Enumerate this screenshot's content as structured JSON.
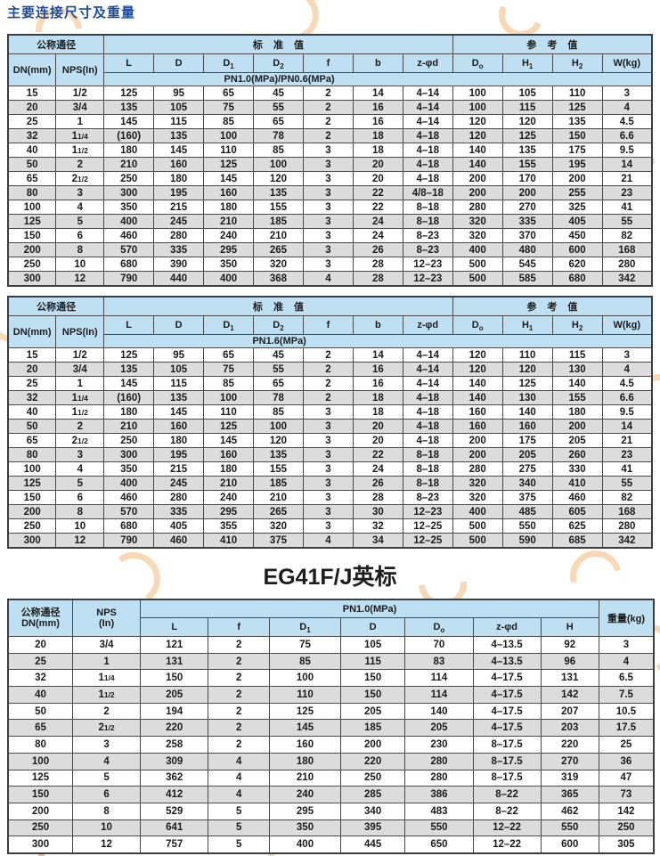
{
  "page": {
    "title": "主要连接尺寸及重量",
    "title_color": "#1B4C9F",
    "header_bg": "#BEE0F2",
    "alt_row_bg": "#DCDCDC",
    "watermark_color": "#F4B26C"
  },
  "table1": {
    "groups": [
      {
        "label": "公称通径",
        "span": 2
      },
      {
        "label": "标 准 值",
        "span": 7
      },
      {
        "label": "参 考 值",
        "span": 4
      }
    ],
    "columns": [
      "DN(mm)",
      "NPS(In)",
      "L",
      "D",
      "D_1",
      "D_2",
      "f",
      "b",
      "z-φd",
      "D_o",
      "H_1",
      "H_2",
      "W(kg)"
    ],
    "pn_label": "PN1.0(MPa)/PN0.6(MPa)",
    "rows": [
      [
        "15",
        "1/2",
        "125",
        "95",
        "65",
        "45",
        "2",
        "14",
        "4–14",
        "100",
        "105",
        "110",
        "3"
      ],
      [
        "20",
        "3/4",
        "135",
        "105",
        "75",
        "55",
        "2",
        "16",
        "4–14",
        "100",
        "115",
        "125",
        "4"
      ],
      [
        "25",
        "1",
        "145",
        "115",
        "85",
        "65",
        "2",
        "16",
        "4–14",
        "120",
        "120",
        "135",
        "4.5"
      ],
      [
        "32",
        "1 1/4",
        "(160)",
        "135",
        "100",
        "78",
        "2",
        "18",
        "4–18",
        "120",
        "125",
        "150",
        "6.6"
      ],
      [
        "40",
        "1 1/2",
        "180",
        "145",
        "110",
        "85",
        "3",
        "18",
        "4–18",
        "140",
        "135",
        "175",
        "9.5"
      ],
      [
        "50",
        "2",
        "210",
        "160",
        "125",
        "100",
        "3",
        "20",
        "4–18",
        "140",
        "155",
        "195",
        "14"
      ],
      [
        "65",
        "2 1/2",
        "250",
        "180",
        "145",
        "120",
        "3",
        "20",
        "4–18",
        "200",
        "170",
        "200",
        "21"
      ],
      [
        "80",
        "3",
        "300",
        "195",
        "160",
        "135",
        "3",
        "22",
        "4/8–18",
        "200",
        "200",
        "255",
        "23"
      ],
      [
        "100",
        "4",
        "350",
        "215",
        "180",
        "155",
        "3",
        "22",
        "8–18",
        "280",
        "270",
        "325",
        "41"
      ],
      [
        "125",
        "5",
        "400",
        "245",
        "210",
        "185",
        "3",
        "24",
        "8–18",
        "320",
        "335",
        "405",
        "55"
      ],
      [
        "150",
        "6",
        "460",
        "280",
        "240",
        "210",
        "3",
        "24",
        "8–23",
        "320",
        "370",
        "450",
        "82"
      ],
      [
        "200",
        "8",
        "570",
        "335",
        "295",
        "265",
        "3",
        "26",
        "8–23",
        "400",
        "480",
        "600",
        "168"
      ],
      [
        "250",
        "10",
        "680",
        "390",
        "350",
        "320",
        "3",
        "28",
        "12–23",
        "500",
        "545",
        "620",
        "280"
      ],
      [
        "300",
        "12",
        "790",
        "440",
        "400",
        "368",
        "4",
        "28",
        "12–23",
        "500",
        "585",
        "680",
        "342"
      ]
    ]
  },
  "table2": {
    "groups": [
      {
        "label": "公称通径",
        "span": 2
      },
      {
        "label": "标 准 值",
        "span": 7
      },
      {
        "label": "参 考 值",
        "span": 4
      }
    ],
    "columns": [
      "DN(mm)",
      "NPS(In)",
      "L",
      "D",
      "D_1",
      "D_2",
      "f",
      "b",
      "z-φd",
      "D_o",
      "H_1",
      "H_2",
      "W(kg)"
    ],
    "pn_label": "PN1.6(MPa)",
    "rows": [
      [
        "15",
        "1/2",
        "125",
        "95",
        "65",
        "45",
        "2",
        "14",
        "4–14",
        "120",
        "110",
        "115",
        "3"
      ],
      [
        "20",
        "3/4",
        "135",
        "105",
        "75",
        "55",
        "2",
        "16",
        "4–14",
        "120",
        "120",
        "130",
        "4"
      ],
      [
        "25",
        "1",
        "145",
        "115",
        "85",
        "65",
        "2",
        "16",
        "4–14",
        "140",
        "125",
        "140",
        "4.5"
      ],
      [
        "32",
        "1 1/4",
        "(160)",
        "135",
        "100",
        "78",
        "2",
        "18",
        "4–18",
        "140",
        "130",
        "155",
        "6.6"
      ],
      [
        "40",
        "1 1/2",
        "180",
        "145",
        "110",
        "85",
        "3",
        "18",
        "4–18",
        "160",
        "140",
        "180",
        "9.5"
      ],
      [
        "50",
        "2",
        "210",
        "160",
        "125",
        "100",
        "3",
        "20",
        "4–18",
        "160",
        "160",
        "200",
        "14"
      ],
      [
        "65",
        "2 1/2",
        "250",
        "180",
        "145",
        "120",
        "3",
        "20",
        "4–18",
        "200",
        "175",
        "205",
        "21"
      ],
      [
        "80",
        "3",
        "300",
        "195",
        "160",
        "135",
        "3",
        "22",
        "8–18",
        "200",
        "205",
        "260",
        "23"
      ],
      [
        "100",
        "4",
        "350",
        "215",
        "180",
        "155",
        "3",
        "24",
        "8–18",
        "280",
        "275",
        "330",
        "41"
      ],
      [
        "125",
        "5",
        "400",
        "245",
        "210",
        "185",
        "3",
        "26",
        "8–18",
        "320",
        "340",
        "410",
        "55"
      ],
      [
        "150",
        "6",
        "460",
        "280",
        "240",
        "210",
        "3",
        "28",
        "8–23",
        "320",
        "375",
        "460",
        "82"
      ],
      [
        "200",
        "8",
        "570",
        "335",
        "295",
        "265",
        "3",
        "30",
        "12–23",
        "400",
        "485",
        "605",
        "168"
      ],
      [
        "250",
        "10",
        "680",
        "405",
        "355",
        "320",
        "3",
        "32",
        "12–25",
        "500",
        "550",
        "625",
        "280"
      ],
      [
        "300",
        "12",
        "790",
        "460",
        "410",
        "375",
        "4",
        "34",
        "12–25",
        "500",
        "590",
        "685",
        "342"
      ]
    ]
  },
  "section3": {
    "title": "EG41F/J英标"
  },
  "table3": {
    "col1_lines": [
      "公称通径",
      "DN(mm)"
    ],
    "col2_lines": [
      "NPS",
      "(In)"
    ],
    "pn_label": "PN1.0(MPa)",
    "weight_label": "重量(kg)",
    "columns": [
      "L",
      "f",
      "D_1",
      "D",
      "D_o",
      "z-φd",
      "H"
    ],
    "rows": [
      [
        "20",
        "3/4",
        "121",
        "2",
        "75",
        "105",
        "70",
        "4–13.5",
        "92",
        "3"
      ],
      [
        "25",
        "1",
        "131",
        "2",
        "85",
        "115",
        "83",
        "4–13.5",
        "96",
        "4"
      ],
      [
        "32",
        "1 1/4",
        "150",
        "2",
        "100",
        "150",
        "114",
        "4–17.5",
        "131",
        "6.5"
      ],
      [
        "40",
        "1 1/2",
        "205",
        "2",
        "110",
        "150",
        "114",
        "4–17.5",
        "142",
        "7.5"
      ],
      [
        "50",
        "2",
        "194",
        "2",
        "125",
        "205",
        "140",
        "4–17.5",
        "207",
        "10.5"
      ],
      [
        "65",
        "2 1/2",
        "220",
        "2",
        "145",
        "185",
        "205",
        "4–17.5",
        "203",
        "17.5"
      ],
      [
        "80",
        "3",
        "258",
        "2",
        "160",
        "200",
        "230",
        "8–17.5",
        "220",
        "25"
      ],
      [
        "100",
        "4",
        "309",
        "4",
        "180",
        "220",
        "280",
        "8–17.5",
        "270",
        "36"
      ],
      [
        "125",
        "5",
        "362",
        "4",
        "210",
        "250",
        "280",
        "8–17.5",
        "319",
        "47"
      ],
      [
        "150",
        "6",
        "412",
        "4",
        "240",
        "285",
        "386",
        "8–22",
        "365",
        "73"
      ],
      [
        "200",
        "8",
        "529",
        "5",
        "295",
        "340",
        "483",
        "8–22",
        "462",
        "142"
      ],
      [
        "250",
        "10",
        "641",
        "5",
        "350",
        "395",
        "550",
        "12–22",
        "550",
        "250"
      ],
      [
        "300",
        "12",
        "757",
        "5",
        "400",
        "445",
        "650",
        "12–22",
        "600",
        "305"
      ]
    ]
  }
}
